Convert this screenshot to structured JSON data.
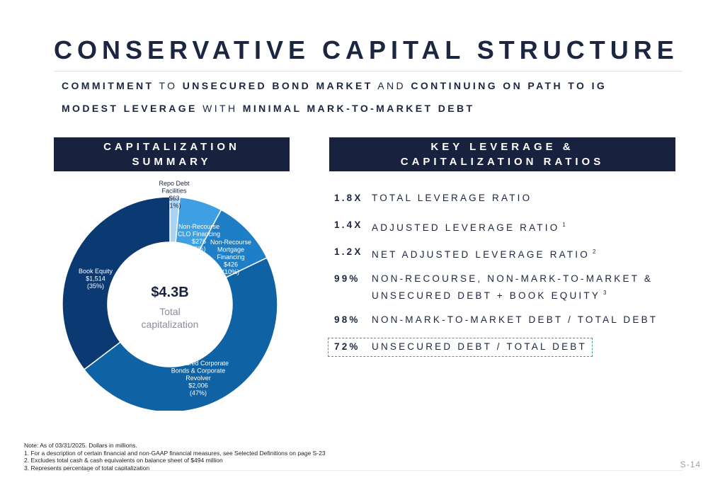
{
  "title": "CONSERVATIVE CAPITAL STRUCTURE",
  "subtitle1": {
    "p1": "COMMITMENT",
    "p2": "TO",
    "p3": "UNSECURED BOND MARKET",
    "p4": "AND",
    "p5": "CONTINUING ON PATH TO IG"
  },
  "subtitle2": {
    "p1": "MODEST LEVERAGE",
    "p2": "WITH",
    "p3": "MINIMAL MARK-TO-MARKET DEBT"
  },
  "left_header": {
    "line1": "CAPITALIZATION",
    "line2": "SUMMARY"
  },
  "right_header": {
    "line1": "KEY LEVERAGE &",
    "line2": "CAPITALIZATION RATIOS"
  },
  "chart_data": {
    "type": "pie",
    "center_value": "$4.3B",
    "center_label_line1": "Total",
    "center_label_line2": "capitalization",
    "units": "Dollars in millions",
    "slices": [
      {
        "name": "Repo Debt Facilities",
        "label_lines": [
          "Repo Debt",
          "Facilities"
        ],
        "value": 63,
        "value_label": "$63",
        "pct_label": "(1%)",
        "color": "#a9d3f2"
      },
      {
        "name": "Non-Recourse CLO Financing",
        "label_lines": [
          "Non-Recourse",
          "CLO Financing"
        ],
        "value": 276,
        "value_label": "$276",
        "pct_label": "(6%)",
        "color": "#3f9fe3"
      },
      {
        "name": "Non-Recourse Mortgage Financing",
        "label_lines": [
          "Non-Recourse",
          "Mortgage",
          "Financing"
        ],
        "value": 426,
        "value_label": "$426",
        "pct_label": "(10%)",
        "color": "#1e7fc7"
      },
      {
        "name": "Unsecured Corporate Bonds & Corporate Revolver",
        "label_lines": [
          "Unsecured Corporate",
          "Bonds & Corporate",
          "Revolver"
        ],
        "value": 2006,
        "value_label": "$2,006",
        "pct_label": "(47%)",
        "color": "#0f62a3"
      },
      {
        "name": "Book Equity",
        "label_lines": [
          "Book Equity"
        ],
        "value": 1514,
        "value_label": "$1,514",
        "pct_label": "(35%)",
        "color": "#0b3a73"
      }
    ]
  },
  "ratios": [
    {
      "value": "1.8X",
      "desc": "TOTAL LEVERAGE RATIO",
      "sup": ""
    },
    {
      "value": "1.4X",
      "desc": "ADJUSTED LEVERAGE RATIO",
      "sup": "1"
    },
    {
      "value": "1.2X",
      "desc": "NET ADJUSTED LEVERAGE RATIO",
      "sup": "2"
    },
    {
      "value": "99%",
      "desc1": "NON-RECOURSE, NON-MARK-TO-MARKET &",
      "desc2": "UNSECURED DEBT + BOOK EQUITY",
      "sup": "3"
    },
    {
      "value": "98%",
      "desc": "NON-MARK-TO-MARKET DEBT / TOTAL DEBT",
      "sup": ""
    },
    {
      "value": "72%",
      "desc": "UNSECURED DEBT / TOTAL DEBT",
      "sup": ""
    }
  ],
  "notes": [
    "Note: As of 03/31/2025. Dollars in millions.",
    "1. For a description of certain financial and non-GAAP financial measures, see Selected Definitions on page S-23",
    "2. Excludes total cash & cash equivalents on balance sheet of $494 million",
    "3. Represents percentage of total capitalization"
  ],
  "page_number": "S-14",
  "colors": {
    "navy": "#18223e",
    "highlight_border": "#3fa86c"
  }
}
